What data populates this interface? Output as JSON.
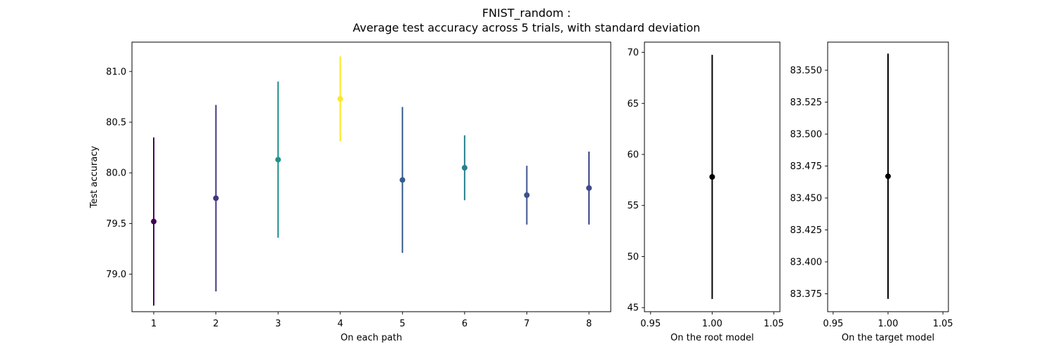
{
  "figure": {
    "title_line1": "FNIST_random :",
    "title_line2": "Average test accuracy across 5 trials, with standard deviation"
  },
  "chart_data": [
    {
      "type": "scatter",
      "name": "paths",
      "xlabel": "On each path",
      "ylabel": "Test accuracy",
      "xlim": [
        0.65,
        8.35
      ],
      "ylim": [
        78.63,
        81.29
      ],
      "xticks": [
        1,
        2,
        3,
        4,
        5,
        6,
        7,
        8
      ],
      "yticks": [
        79.0,
        79.5,
        80.0,
        80.5,
        81.0
      ],
      "ytick_labels": [
        "79.0",
        "79.5",
        "80.0",
        "80.5",
        "81.0"
      ],
      "grid": false,
      "points": [
        {
          "x": 1,
          "y": 79.52,
          "err": 0.83,
          "color": "#440154"
        },
        {
          "x": 2,
          "y": 79.75,
          "err": 0.92,
          "color": "#46327e"
        },
        {
          "x": 3,
          "y": 80.13,
          "err": 0.77,
          "color": "#21918c"
        },
        {
          "x": 4,
          "y": 80.73,
          "err": 0.42,
          "color": "#fde725"
        },
        {
          "x": 5,
          "y": 79.93,
          "err": 0.72,
          "color": "#365c8d"
        },
        {
          "x": 6,
          "y": 80.05,
          "err": 0.32,
          "color": "#277f8e"
        },
        {
          "x": 7,
          "y": 79.78,
          "err": 0.29,
          "color": "#3b528b"
        },
        {
          "x": 8,
          "y": 79.85,
          "err": 0.36,
          "color": "#3e4989"
        }
      ]
    },
    {
      "type": "scatter",
      "name": "root",
      "xlabel": "On the root model",
      "ylabel": "",
      "xlim": [
        0.945,
        1.055
      ],
      "ylim": [
        44.6,
        71.0
      ],
      "xticks": [
        0.95,
        1.0,
        1.05
      ],
      "xtick_labels": [
        "0.95",
        "1.00",
        "1.05"
      ],
      "yticks": [
        45,
        50,
        55,
        60,
        65,
        70
      ],
      "ytick_labels": [
        "45",
        "50",
        "55",
        "60",
        "65",
        "70"
      ],
      "grid": false,
      "points": [
        {
          "x": 1.0,
          "y": 57.8,
          "err": 11.95,
          "color": "#000000"
        }
      ]
    },
    {
      "type": "scatter",
      "name": "target",
      "xlabel": "On the target model",
      "ylabel": "",
      "xlim": [
        0.945,
        1.055
      ],
      "ylim": [
        83.361,
        83.572
      ],
      "xticks": [
        0.95,
        1.0,
        1.05
      ],
      "xtick_labels": [
        "0.95",
        "1.00",
        "1.05"
      ],
      "yticks": [
        83.375,
        83.4,
        83.425,
        83.45,
        83.475,
        83.5,
        83.525,
        83.55
      ],
      "ytick_labels": [
        "83.375",
        "83.400",
        "83.425",
        "83.450",
        "83.475",
        "83.500",
        "83.525",
        "83.550"
      ],
      "grid": false,
      "points": [
        {
          "x": 1.0,
          "y": 83.467,
          "err": 0.096,
          "color": "#000000"
        }
      ]
    }
  ]
}
